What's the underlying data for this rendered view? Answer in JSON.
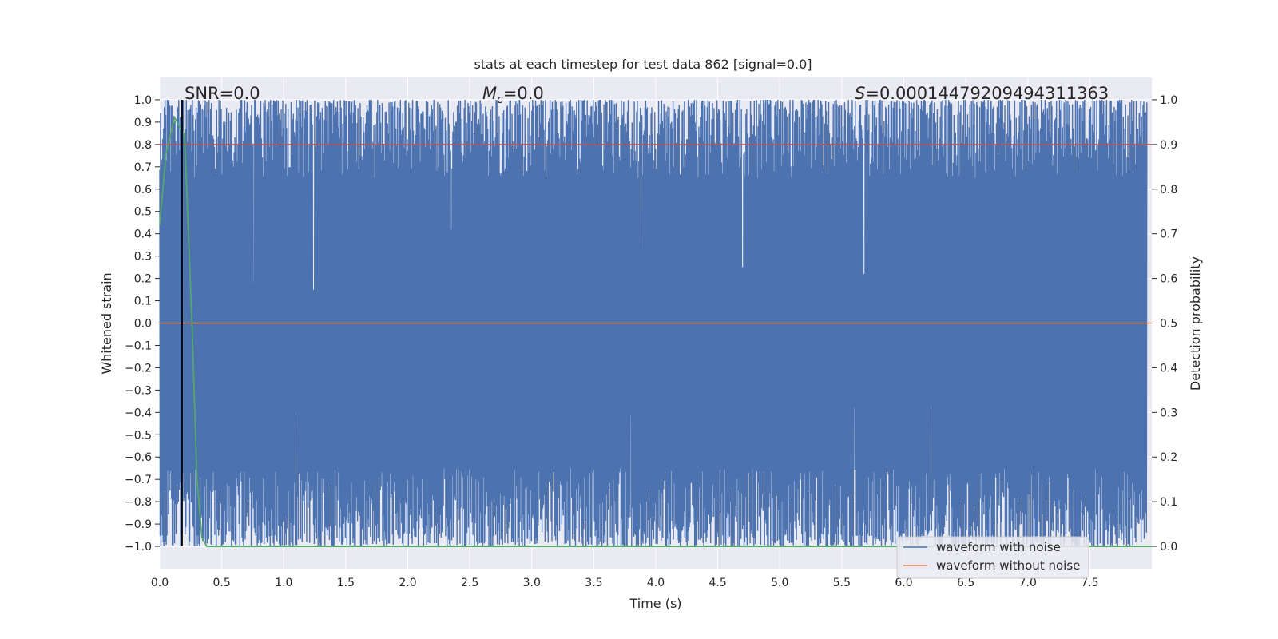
{
  "chart_data": {
    "type": "line",
    "title": "stats at each timestep for test data 862 [signal=0.0]",
    "xlabel": "Time (s)",
    "ylabel_left": "Whitened strain",
    "ylabel_right": "Detection probability",
    "xlim": [
      0.0,
      8.0
    ],
    "ylim_left": [
      -1.1,
      1.1
    ],
    "ylim_right": [
      -0.05,
      1.05
    ],
    "x_ticks": [
      "0.0",
      "0.5",
      "1.0",
      "1.5",
      "2.0",
      "2.5",
      "3.0",
      "3.5",
      "4.0",
      "4.5",
      "5.0",
      "5.5",
      "6.0",
      "6.5",
      "7.0",
      "7.5"
    ],
    "y_ticks_left": [
      "1.0",
      "0.9",
      "0.8",
      "0.7",
      "0.6",
      "0.5",
      "0.4",
      "0.3",
      "0.2",
      "0.1",
      "0.0",
      "−0.1",
      "−0.2",
      "−0.3",
      "−0.4",
      "−0.5",
      "−0.6",
      "−0.7",
      "−0.8",
      "−0.9",
      "−1.0"
    ],
    "y_ticks_right": [
      "1.0",
      "0.9",
      "0.8",
      "0.7",
      "0.6",
      "0.5",
      "0.4",
      "0.3",
      "0.2",
      "0.1",
      "0.0"
    ],
    "grid": true,
    "annotations": {
      "snr": "SNR=0.0",
      "mc_symbol": "M",
      "mc_sub": "c",
      "mc_value": "=0.0",
      "s_symbol": "S",
      "s_value": "=0.00014479209494311363"
    },
    "marker_time": 0.18,
    "threshold_probability": 0.9,
    "series": [
      {
        "name": "waveform with noise",
        "color": "#4c72b0",
        "description_range": [
          -1.0,
          1.0
        ],
        "upper_dips": [
          [
            0.76,
            0.18
          ],
          [
            1.24,
            0.15
          ],
          [
            2.35,
            0.42
          ],
          [
            3.88,
            0.33
          ],
          [
            4.7,
            0.25
          ],
          [
            5.68,
            0.22
          ]
        ],
        "lower_spikes": [
          [
            1.1,
            -0.4
          ],
          [
            3.8,
            -0.41
          ],
          [
            5.6,
            -0.38
          ],
          [
            6.22,
            -0.37
          ]
        ]
      },
      {
        "name": "waveform without noise",
        "color": "#dd8452",
        "values_constant": 0.0
      },
      {
        "name": "detection probability",
        "color": "#55a868",
        "x": [
          0.0,
          0.05,
          0.12,
          0.2,
          0.26,
          0.3,
          0.34,
          0.38,
          8.0
        ],
        "y": [
          0.72,
          0.88,
          0.96,
          0.92,
          0.5,
          0.15,
          0.02,
          0.0,
          0.0
        ]
      }
    ],
    "legend": {
      "placement": "lower right",
      "entries": [
        "waveform with noise",
        "waveform without noise"
      ]
    }
  }
}
